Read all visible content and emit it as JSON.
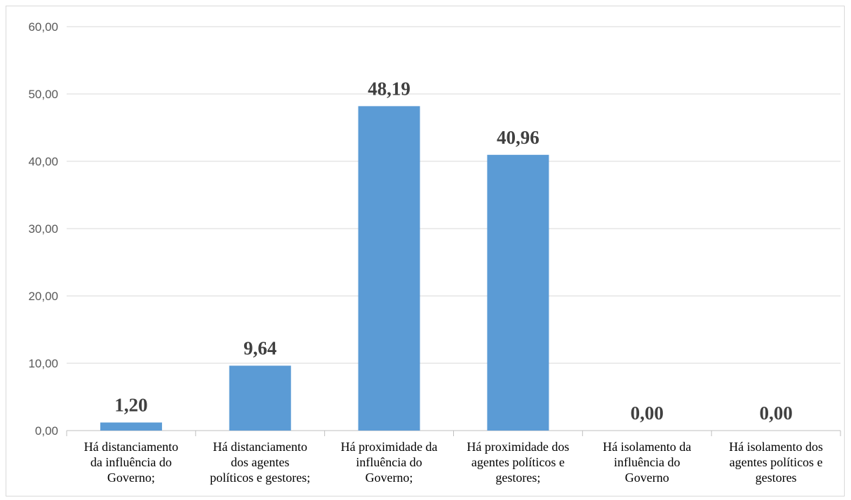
{
  "chart_data": {
    "type": "bar",
    "categories": [
      [
        "Há distanciamento",
        "da influência do",
        "Governo;"
      ],
      [
        "Há distanciamento",
        "dos agentes",
        "políticos e gestores;"
      ],
      [
        "Há proximidade da",
        "influência do",
        "Governo;"
      ],
      [
        "Há proximidade dos",
        "agentes políticos e",
        "gestores;"
      ],
      [
        "Há isolamento da",
        "influência do",
        "Governo"
      ],
      [
        "Há isolamento dos",
        "agentes políticos e",
        "gestores"
      ]
    ],
    "values": [
      1.2,
      9.64,
      48.19,
      40.96,
      0.0,
      0.0
    ],
    "data_labels": [
      "1,20",
      "9,64",
      "48,19",
      "40,96",
      "0,00",
      "0,00"
    ],
    "yticks": [
      0,
      10,
      20,
      30,
      40,
      50,
      60
    ],
    "ytick_labels": [
      "0,00",
      "10,00",
      "20,00",
      "30,00",
      "40,00",
      "50,00",
      "60,00"
    ],
    "ylim": [
      0,
      60
    ],
    "grid": true,
    "legend": "none",
    "title": "",
    "xlabel": "",
    "ylabel": "",
    "colors": {
      "bar": "#5b9bd5",
      "grid": "#d9d9d9",
      "tick_text": "#595959",
      "data_label": "#404040"
    }
  }
}
